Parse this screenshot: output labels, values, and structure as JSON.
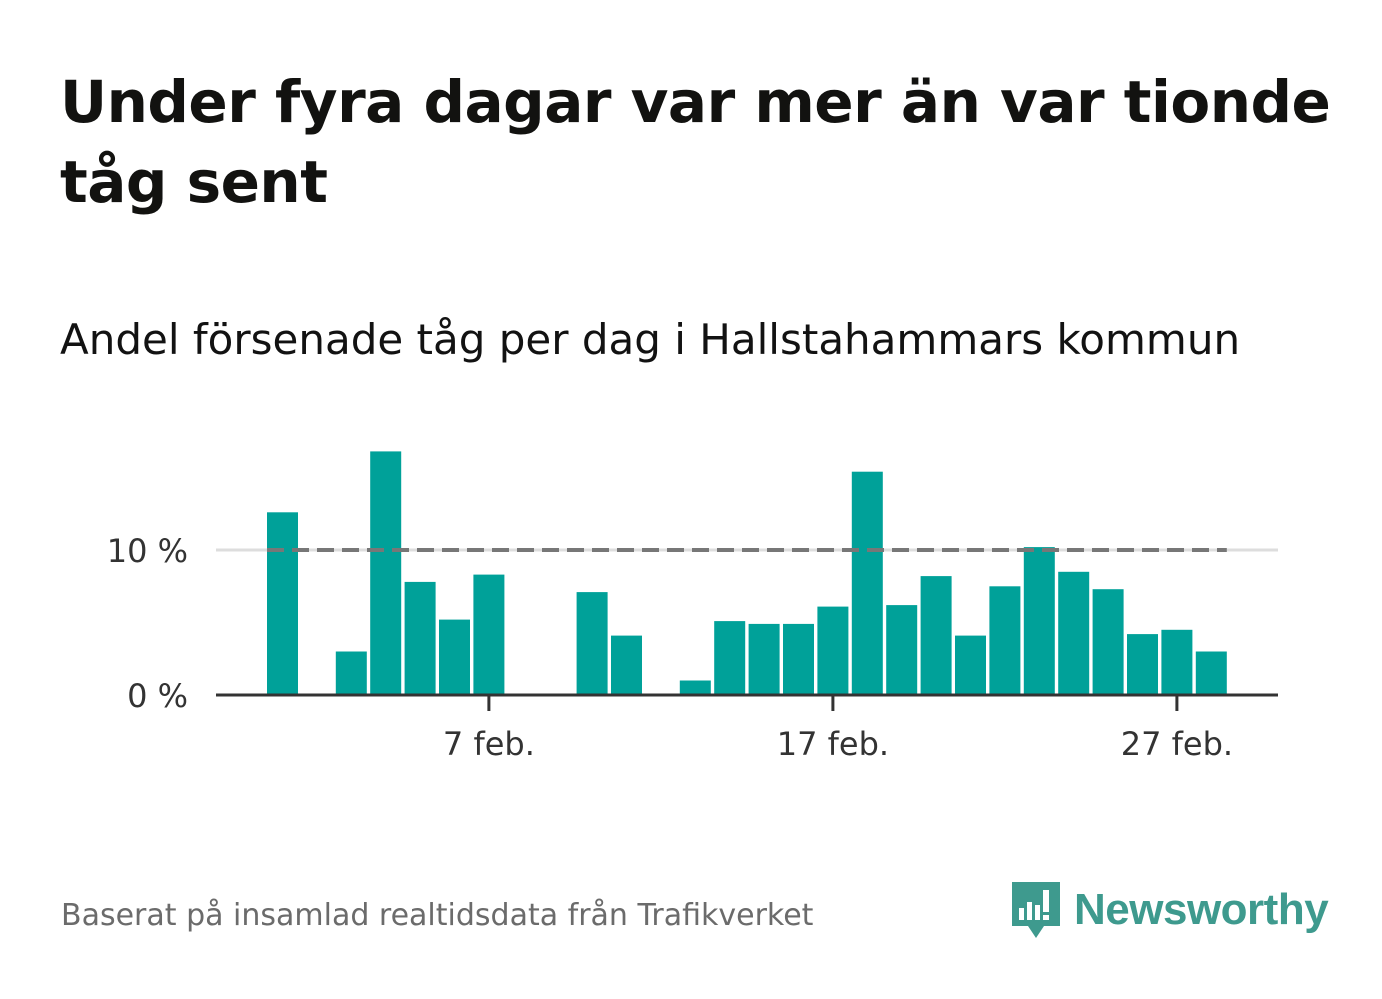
{
  "header": {
    "title": "Under fyra dagar var mer än var tionde tåg sent",
    "subtitle": "Andel försenade tåg per dag i Hallstahammars kommun"
  },
  "footer": {
    "source": "Baserat på insamlad realtidsdata från Trafikverket",
    "brand": "Newsworthy"
  },
  "colors": {
    "bar": "#00a199",
    "reference_line": "#777777",
    "axis": "#333333",
    "brand": "#3e9a8e"
  },
  "chart_data": {
    "type": "bar",
    "title": "Under fyra dagar var mer än var tionde tåg sent",
    "subtitle": "Andel försenade tåg per dag i Hallstahammars kommun",
    "x": [
      "1 feb.",
      "2 feb.",
      "3 feb.",
      "4 feb.",
      "5 feb.",
      "6 feb.",
      "7 feb.",
      "8 feb.",
      "9 feb.",
      "10 feb.",
      "11 feb.",
      "12 feb.",
      "13 feb.",
      "14 feb.",
      "15 feb.",
      "16 feb.",
      "17 feb.",
      "18 feb.",
      "19 feb.",
      "20 feb.",
      "21 feb.",
      "22 feb.",
      "23 feb.",
      "24 feb.",
      "25 feb.",
      "26 feb.",
      "27 feb.",
      "28 feb."
    ],
    "values": [
      12.6,
      0,
      3.0,
      16.8,
      7.8,
      5.2,
      8.3,
      0,
      0,
      7.1,
      4.1,
      0,
      1.0,
      5.1,
      4.9,
      4.9,
      6.1,
      15.4,
      6.2,
      8.2,
      4.1,
      7.5,
      10.2,
      8.5,
      7.3,
      4.2,
      4.5,
      3.0
    ],
    "unit": "%",
    "xticks": [
      "7 feb.",
      "17 feb.",
      "27 feb."
    ],
    "yticks": [
      "0 %",
      "10 %"
    ],
    "ylim": [
      0,
      17
    ],
    "reference_line": {
      "value": 10,
      "style": "dashed"
    },
    "grid": true
  }
}
